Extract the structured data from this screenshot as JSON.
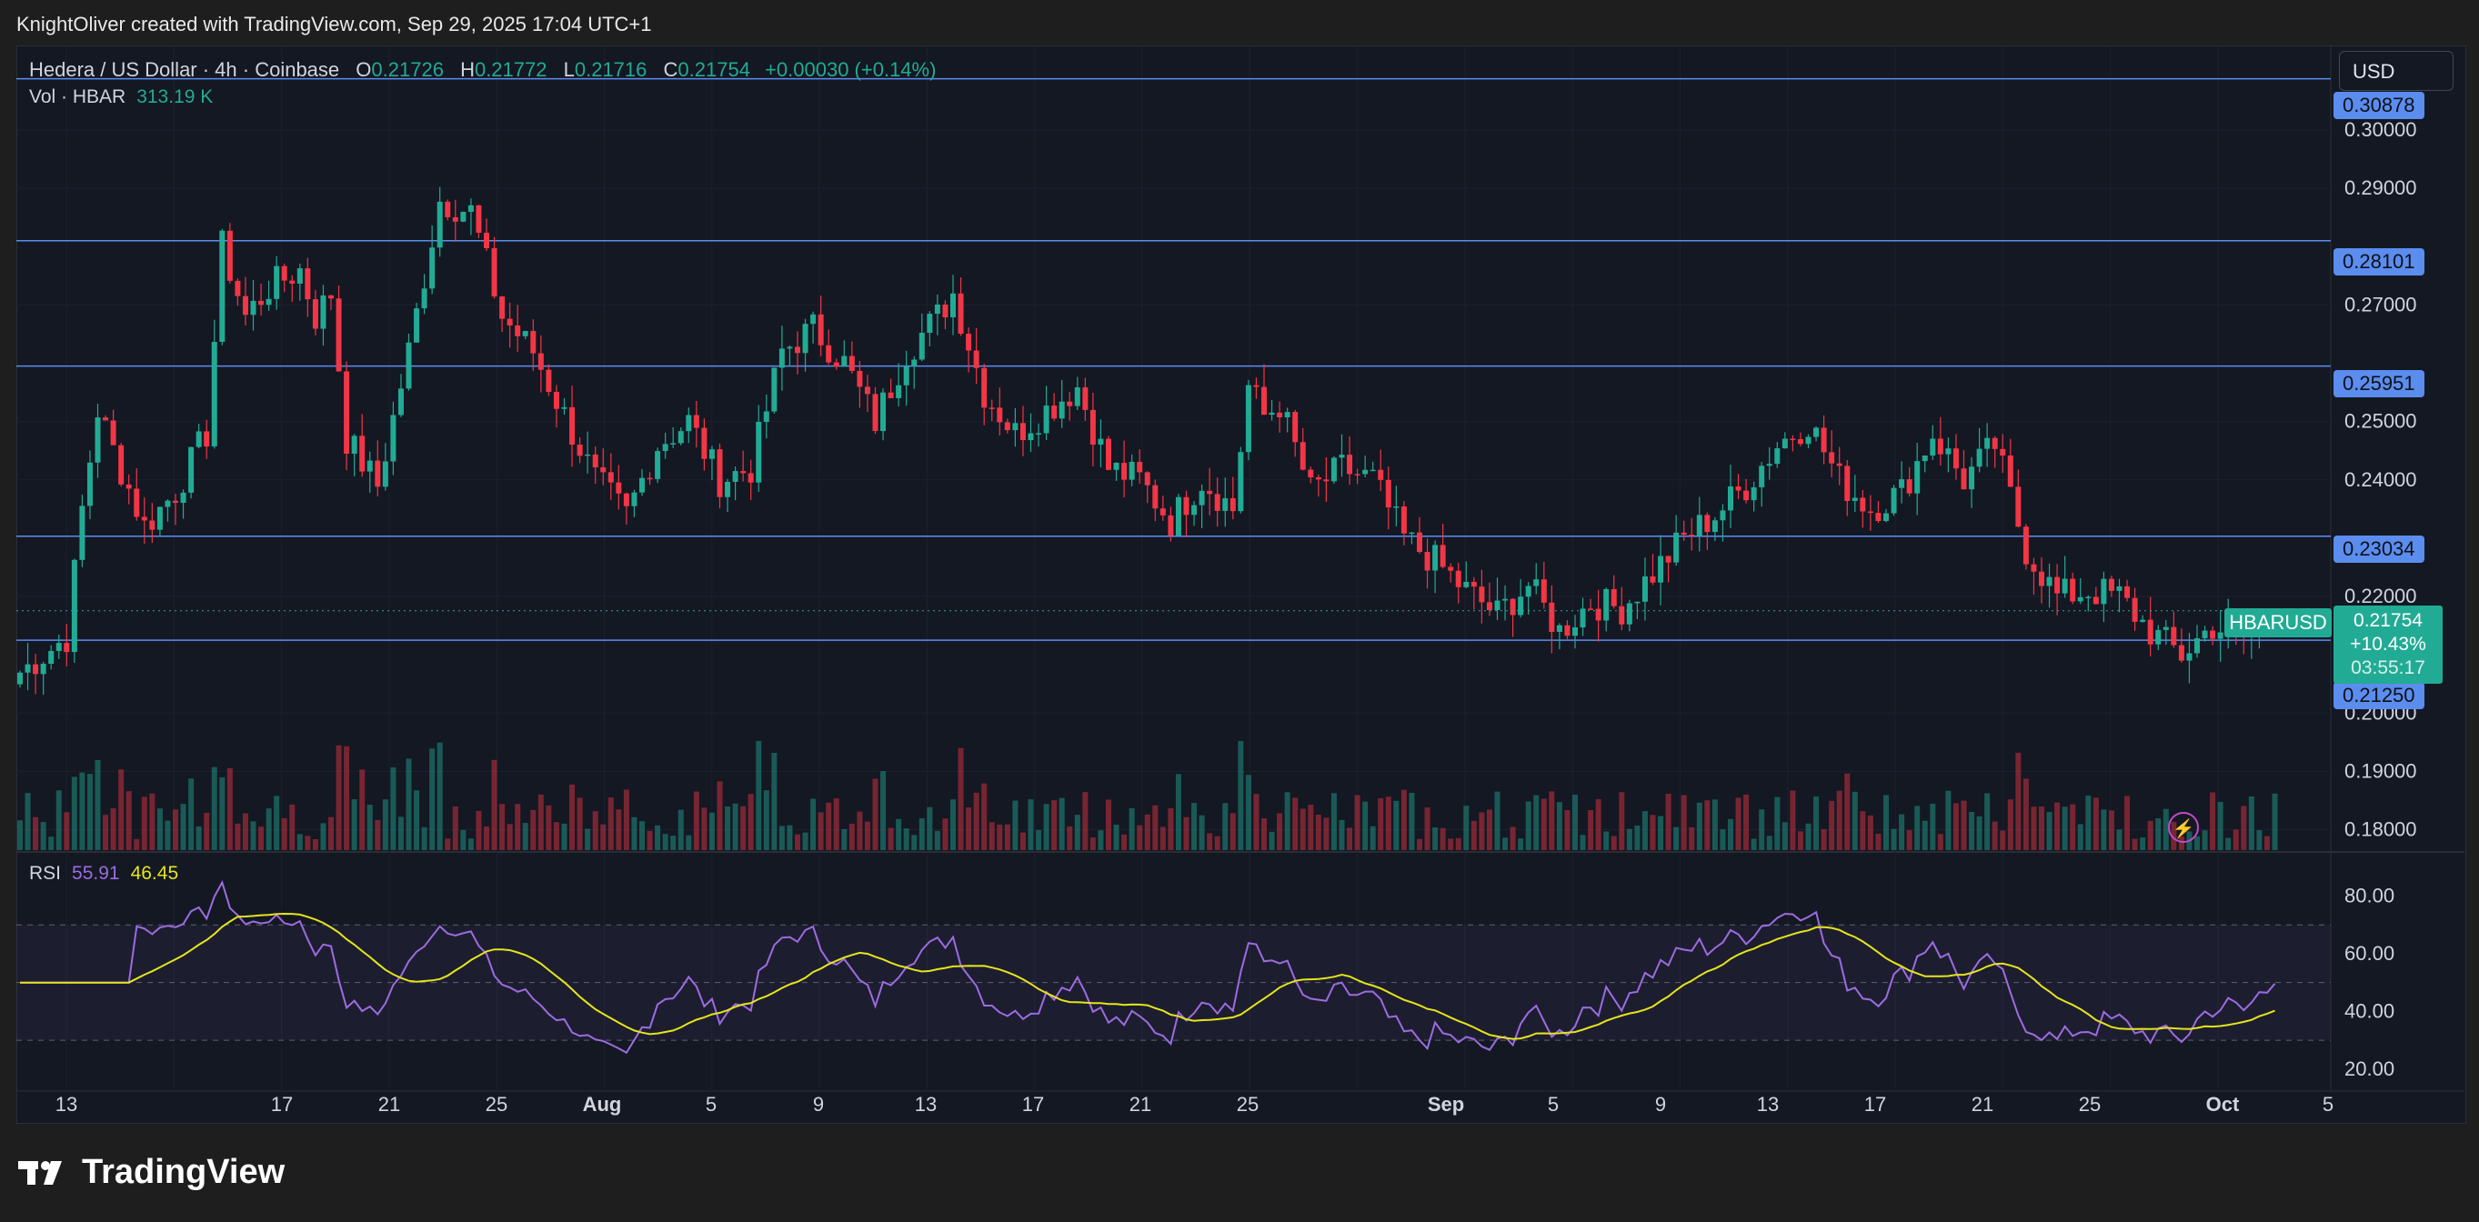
{
  "header": {
    "text": "KnightOliver created with TradingView.com, Sep 29, 2025 17:04 UTC+1"
  },
  "legend": {
    "symbol": "Hedera / US Dollar · 4h · Coinbase",
    "open_label": "O",
    "open": "0.21726",
    "high_label": "H",
    "high": "0.21772",
    "low_label": "L",
    "low": "0.21716",
    "close_label": "C",
    "close": "0.21754",
    "change": "+0.00030 (+0.14%)"
  },
  "volume": {
    "label": "Vol · HBAR",
    "value": "313.19 K"
  },
  "rsi": {
    "label": "RSI",
    "value": "55.91",
    "ma": "46.45",
    "ticks": [
      "80.00",
      "60.00",
      "40.00",
      "20.00"
    ]
  },
  "currency": "USD",
  "price_axis": [
    "0.30000",
    "0.29000",
    "0.27000",
    "0.25000",
    "0.24000",
    "0.22000",
    "0.20000",
    "0.19000",
    "0.18000"
  ],
  "horizontal_levels": [
    "0.30878",
    "0.28101",
    "0.25951",
    "0.23034",
    "0.21250"
  ],
  "last_price": {
    "symbol": "HBARUSD",
    "price": "0.21754",
    "change": "+10.43%",
    "countdown": "03:55:17"
  },
  "time_axis": [
    "13",
    "17",
    "21",
    "25",
    "Aug",
    "5",
    "9",
    "13",
    "17",
    "21",
    "25",
    "Sep",
    "5",
    "9",
    "13",
    "17",
    "21",
    "25",
    "Oct",
    "5"
  ],
  "brand": "TradingView",
  "colors": {
    "up": "#22ab94",
    "down": "#f23645",
    "level": "#5b8def",
    "rsi": "#9c6ce0",
    "rsi_ma": "#e5e51c"
  },
  "chart_data": {
    "type": "candlestick",
    "timeframe": "4h",
    "x_start_date": "2025-07-11",
    "anchors": [
      [
        0,
        0.207
      ],
      [
        6,
        0.213
      ],
      [
        8,
        0.235
      ],
      [
        10,
        0.252
      ],
      [
        12,
        0.245
      ],
      [
        16,
        0.232
      ],
      [
        20,
        0.238
      ],
      [
        24,
        0.248
      ],
      [
        26,
        0.28
      ],
      [
        29,
        0.268
      ],
      [
        32,
        0.273
      ],
      [
        36,
        0.276
      ],
      [
        38,
        0.268
      ],
      [
        40,
        0.272
      ],
      [
        42,
        0.247
      ],
      [
        46,
        0.239
      ],
      [
        50,
        0.262
      ],
      [
        54,
        0.288
      ],
      [
        58,
        0.286
      ],
      [
        62,
        0.268
      ],
      [
        66,
        0.262
      ],
      [
        70,
        0.251
      ],
      [
        74,
        0.24
      ],
      [
        78,
        0.234
      ],
      [
        82,
        0.246
      ],
      [
        86,
        0.25
      ],
      [
        90,
        0.24
      ],
      [
        94,
        0.242
      ],
      [
        98,
        0.262
      ],
      [
        102,
        0.266
      ],
      [
        106,
        0.26
      ],
      [
        110,
        0.25
      ],
      [
        114,
        0.262
      ],
      [
        118,
        0.268
      ],
      [
        120,
        0.272
      ],
      [
        124,
        0.255
      ],
      [
        128,
        0.248
      ],
      [
        132,
        0.252
      ],
      [
        136,
        0.256
      ],
      [
        140,
        0.242
      ],
      [
        144,
        0.24
      ],
      [
        148,
        0.233
      ],
      [
        152,
        0.24
      ],
      [
        156,
        0.235
      ],
      [
        158,
        0.256
      ],
      [
        160,
        0.251
      ],
      [
        162,
        0.253
      ],
      [
        166,
        0.238
      ],
      [
        170,
        0.242
      ],
      [
        174,
        0.24
      ],
      [
        178,
        0.23
      ],
      [
        182,
        0.226
      ],
      [
        186,
        0.221
      ],
      [
        190,
        0.217
      ],
      [
        194,
        0.222
      ],
      [
        198,
        0.214
      ],
      [
        202,
        0.219
      ],
      [
        206,
        0.218
      ],
      [
        210,
        0.224
      ],
      [
        214,
        0.23
      ],
      [
        218,
        0.234
      ],
      [
        222,
        0.239
      ],
      [
        226,
        0.246
      ],
      [
        230,
        0.25
      ],
      [
        234,
        0.24
      ],
      [
        238,
        0.235
      ],
      [
        242,
        0.238
      ],
      [
        246,
        0.248
      ],
      [
        250,
        0.24
      ],
      [
        254,
        0.246
      ],
      [
        258,
        0.228
      ],
      [
        262,
        0.22
      ],
      [
        266,
        0.221
      ],
      [
        270,
        0.22
      ],
      [
        274,
        0.214
      ],
      [
        278,
        0.21
      ],
      [
        282,
        0.215
      ],
      [
        286,
        0.213
      ],
      [
        290,
        0.218
      ]
    ],
    "candles_per_day": 6,
    "ylim": [
      0.1765,
      0.3145
    ],
    "volume_ylim": [
      0,
      3500000
    ],
    "rsi_ylim": [
      13,
      95
    ]
  }
}
